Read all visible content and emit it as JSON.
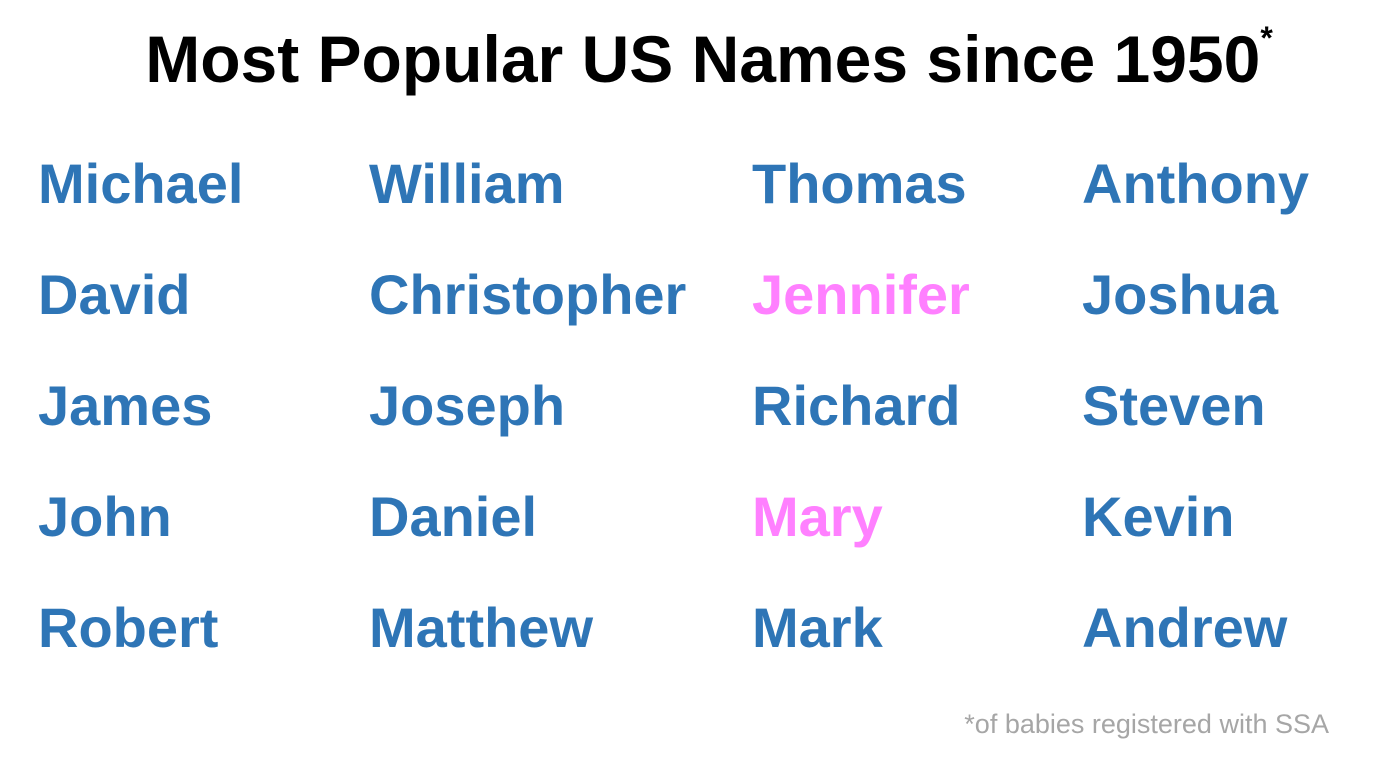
{
  "title": {
    "text": "Most Popular US Names since 1950",
    "marker": "*"
  },
  "colors": {
    "male": "#2E75B6",
    "female": "#FF80FF",
    "footnote": "#A6A6A6",
    "title": "#000000"
  },
  "columns": [
    {
      "names": [
        {
          "text": "Michael",
          "gender": "male"
        },
        {
          "text": "David",
          "gender": "male"
        },
        {
          "text": "James",
          "gender": "male"
        },
        {
          "text": "John",
          "gender": "male"
        },
        {
          "text": "Robert",
          "gender": "male"
        }
      ]
    },
    {
      "names": [
        {
          "text": "William",
          "gender": "male"
        },
        {
          "text": "Christopher",
          "gender": "male"
        },
        {
          "text": "Joseph",
          "gender": "male"
        },
        {
          "text": "Daniel",
          "gender": "male"
        },
        {
          "text": "Matthew",
          "gender": "male"
        }
      ]
    },
    {
      "names": [
        {
          "text": "Thomas",
          "gender": "male"
        },
        {
          "text": "Jennifer",
          "gender": "female"
        },
        {
          "text": "Richard",
          "gender": "male"
        },
        {
          "text": "Mary",
          "gender": "female"
        },
        {
          "text": "Mark",
          "gender": "male"
        }
      ]
    },
    {
      "names": [
        {
          "text": "Anthony",
          "gender": "male"
        },
        {
          "text": "Joshua",
          "gender": "male"
        },
        {
          "text": "Steven",
          "gender": "male"
        },
        {
          "text": "Kevin",
          "gender": "male"
        },
        {
          "text": "Andrew",
          "gender": "male"
        }
      ]
    }
  ],
  "footnote": "*of babies registered with SSA"
}
